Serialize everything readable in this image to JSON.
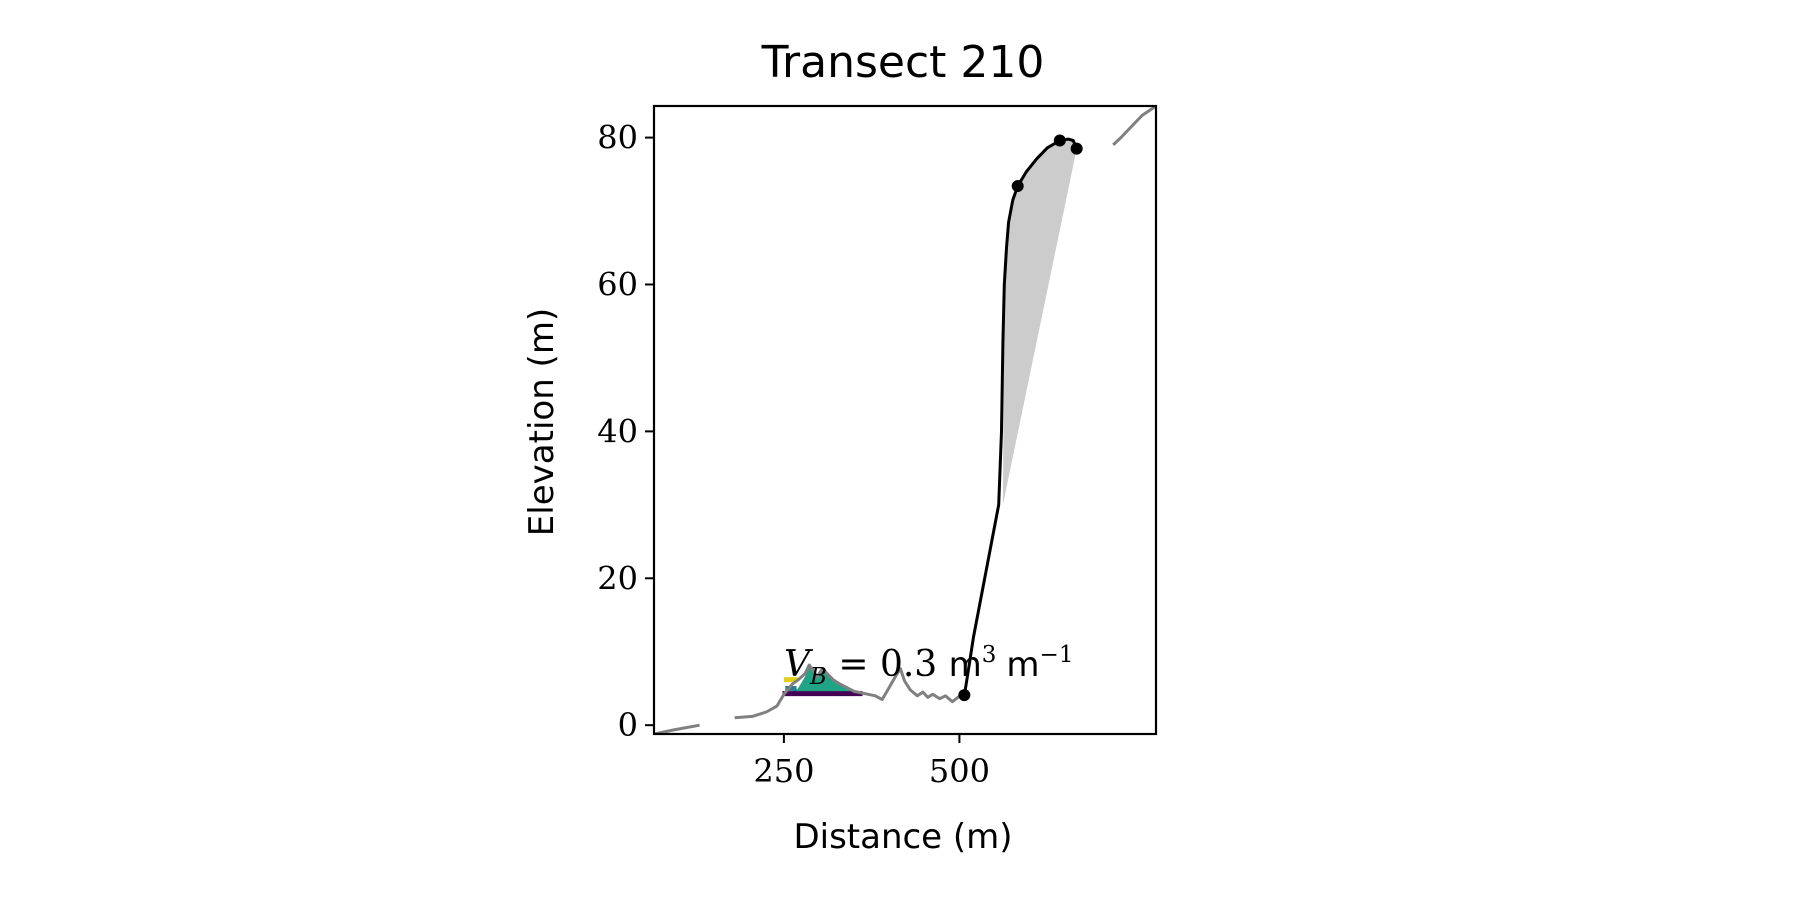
{
  "chart_data": {
    "type": "line",
    "title": "Transect 210",
    "xlabel": "Distance (m)",
    "ylabel": "Elevation (m)",
    "xlim": [
      65,
      780
    ],
    "ylim": [
      -1.2,
      84.3
    ],
    "xticks": [
      250,
      500
    ],
    "xtick_labels": [
      "250",
      "500"
    ],
    "yticks": [
      0,
      20,
      40,
      60,
      80
    ],
    "ytick_labels": [
      "0",
      "20",
      "40",
      "60",
      "80"
    ],
    "grid": false,
    "legend": "none",
    "colors": {
      "profile": "#808080",
      "cliff": "#000000",
      "fill": "#cccccc",
      "dune_fill": "#21a386",
      "bar_yellow": "#e2d018",
      "bar_teal": "#2a7f8e",
      "bar_purple": "#440154"
    },
    "annotation": {
      "V": "V",
      "sub": "B",
      "eq": " = 0.3 ",
      "unit1": "m",
      "exp1": "3",
      "unit2": "m",
      "exp2": "−1"
    },
    "profile_segments": [
      [
        [
          65,
          -1.2
        ],
        [
          95,
          -0.6
        ],
        [
          130,
          0.0
        ]
      ],
      [
        [
          180,
          1.0
        ],
        [
          205,
          1.2
        ],
        [
          225,
          1.8
        ],
        [
          240,
          2.6
        ],
        [
          250,
          4.2
        ],
        [
          262,
          5.6
        ],
        [
          272,
          6.3
        ],
        [
          280,
          7.0
        ],
        [
          286,
          8.2
        ],
        [
          292,
          7.4
        ],
        [
          297,
          6.6
        ],
        [
          305,
          7.7
        ],
        [
          312,
          7.0
        ],
        [
          320,
          6.2
        ],
        [
          330,
          5.6
        ],
        [
          340,
          5.1
        ],
        [
          350,
          4.6
        ],
        [
          360,
          4.4
        ],
        [
          370,
          4.2
        ],
        [
          380,
          4.0
        ],
        [
          390,
          3.5
        ],
        [
          398,
          4.8
        ],
        [
          410,
          6.8
        ],
        [
          416,
          7.7
        ],
        [
          422,
          6.0
        ],
        [
          430,
          4.8
        ],
        [
          440,
          4.0
        ],
        [
          448,
          4.5
        ],
        [
          455,
          3.8
        ],
        [
          462,
          4.2
        ],
        [
          472,
          3.6
        ],
        [
          480,
          4.0
        ],
        [
          490,
          3.2
        ],
        [
          498,
          3.8
        ],
        [
          505,
          4.2
        ]
      ],
      [
        [
          719,
          79.0
        ],
        [
          730,
          80.0
        ],
        [
          745,
          81.5
        ],
        [
          760,
          83.0
        ],
        [
          780,
          84.3
        ]
      ]
    ],
    "cliff_profile": [
      [
        507,
        4.0
      ],
      [
        512,
        7.0
      ],
      [
        520,
        12.0
      ],
      [
        530,
        17.0
      ],
      [
        540,
        22.0
      ],
      [
        548,
        26.0
      ],
      [
        556,
        30.0
      ],
      [
        560,
        40.0
      ],
      [
        562,
        52.0
      ],
      [
        564,
        60.0
      ],
      [
        567,
        65.0
      ],
      [
        570,
        68.5
      ],
      [
        576,
        71.5
      ],
      [
        583,
        73.4
      ],
      [
        595,
        75.3
      ],
      [
        610,
        77.1
      ],
      [
        625,
        78.6
      ],
      [
        643,
        79.6
      ],
      [
        655,
        79.8
      ],
      [
        662,
        79.6
      ],
      [
        667,
        78.5
      ]
    ],
    "cliff_points": [
      [
        507,
        4.1
      ],
      [
        583,
        73.4
      ],
      [
        643,
        79.6
      ],
      [
        667,
        78.5
      ]
    ],
    "fill_region": [
      [
        562,
        30.0
      ],
      [
        564,
        60.0
      ],
      [
        567,
        65.0
      ],
      [
        570,
        68.5
      ],
      [
        576,
        71.5
      ],
      [
        583,
        73.4
      ],
      [
        595,
        75.3
      ],
      [
        610,
        77.1
      ],
      [
        625,
        78.6
      ],
      [
        643,
        79.6
      ],
      [
        655,
        79.8
      ],
      [
        662,
        79.6
      ],
      [
        667,
        78.5
      ],
      [
        562,
        30.0
      ]
    ],
    "dune_fill": [
      [
        262,
        4.6
      ],
      [
        270,
        5.0
      ],
      [
        280,
        6.6
      ],
      [
        286,
        8.2
      ],
      [
        292,
        7.4
      ],
      [
        297,
        6.6
      ],
      [
        305,
        7.7
      ],
      [
        312,
        7.0
      ],
      [
        320,
        6.2
      ],
      [
        330,
        5.6
      ],
      [
        340,
        5.1
      ],
      [
        350,
        4.7
      ],
      [
        355,
        4.6
      ]
    ],
    "level_bars": [
      {
        "x1": 250,
        "x2": 270,
        "y": 6.2,
        "color": "#e2d018"
      },
      {
        "x1": 252,
        "x2": 268,
        "y": 5.0,
        "color": "#2a7f8e"
      },
      {
        "x1": 248,
        "x2": 362,
        "y": 4.3,
        "color": "#440154"
      }
    ]
  }
}
